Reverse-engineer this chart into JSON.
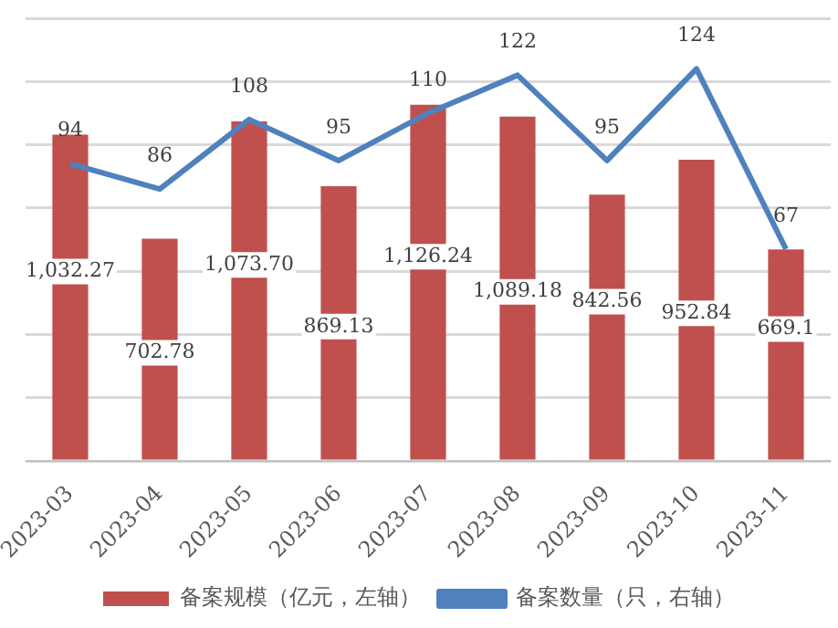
{
  "chart_data": {
    "type": "bar",
    "categories": [
      "2023-03",
      "2023-04",
      "2023-05",
      "2023-06",
      "2023-07",
      "2023-08",
      "2023-09",
      "2023-10",
      "2023-11"
    ],
    "series": [
      {
        "name": "备案规模（亿元，左轴）",
        "color": "#c0504d",
        "values": [
          1032.27,
          702.78,
          1073.7,
          869.13,
          1126.24,
          1089.18,
          842.56,
          952.84,
          669.1
        ],
        "value_labels": [
          "1,032.27",
          "702.78",
          "1,073.70",
          "869.13",
          "1,126.24",
          "1,089.18",
          "842.56",
          "952.84",
          "669.1"
        ]
      },
      {
        "name": "备案数量（只，右轴）",
        "type": "line",
        "axis": "y2",
        "color": "#4f81bd",
        "values": [
          94,
          86,
          108,
          95,
          110,
          122,
          95,
          124,
          67
        ]
      }
    ],
    "ylim": [
      0,
      1400
    ],
    "yticks": [
      {
        "value": 0,
        "label": null
      },
      {
        "value": 200,
        "label": null
      },
      {
        "value": 400,
        "label": null
      },
      {
        "value": 600,
        "label": null
      },
      {
        "value": 800,
        "label": null
      },
      {
        "value": 1000,
        "label": null
      },
      {
        "value": 1200,
        "label": null
      },
      {
        "value": 1400,
        "label": null
      }
    ],
    "y2lim": [
      0,
      140
    ],
    "y2ticks": [
      {
        "value": 0,
        "label": null
      },
      {
        "value": 20,
        "label": null
      },
      {
        "value": 40,
        "label": null
      },
      {
        "value": 60,
        "label": null
      },
      {
        "value": 80,
        "label": null
      },
      {
        "value": 100,
        "label": null
      },
      {
        "value": 120,
        "label": null
      },
      {
        "value": 140,
        "label": null
      }
    ],
    "grid": "y",
    "legend": "bottom",
    "tick_labels": "x",
    "data_labels": true,
    "marker": "none",
    "line_style": "solid"
  }
}
